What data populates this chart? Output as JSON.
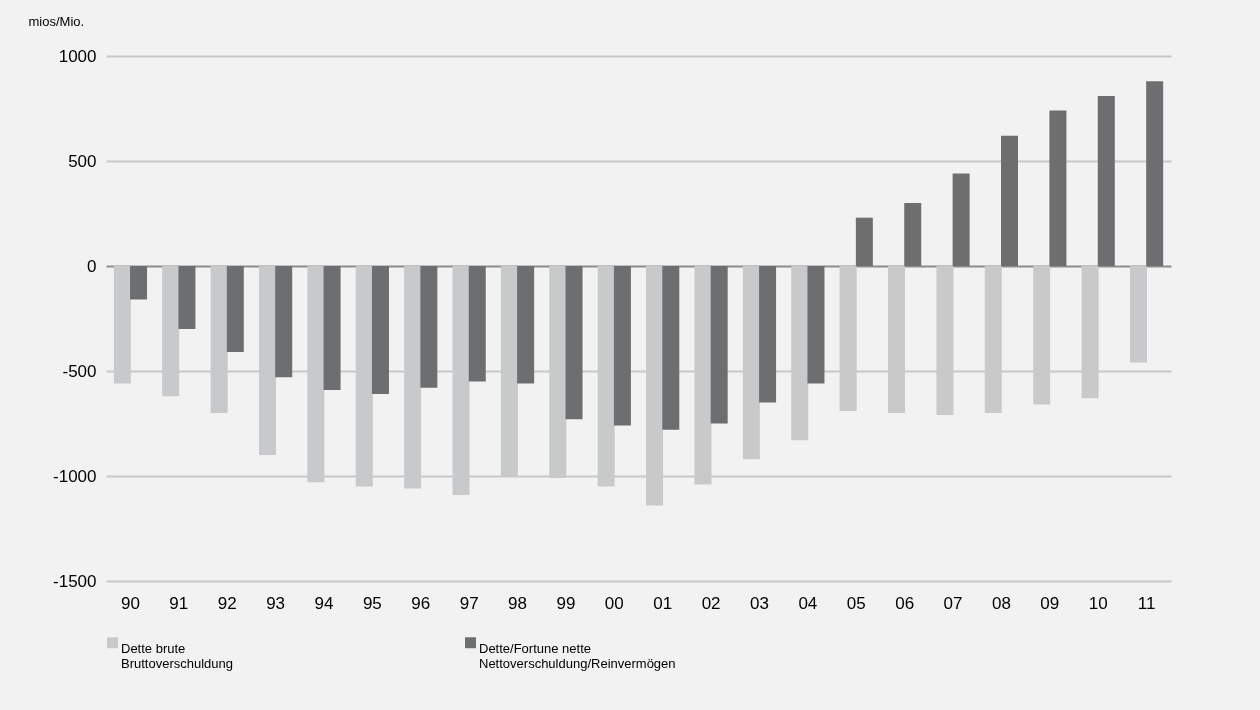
{
  "chart_data": {
    "type": "bar",
    "ylabel": "mios/Mio.",
    "categories": [
      "90",
      "91",
      "92",
      "93",
      "94",
      "95",
      "96",
      "97",
      "98",
      "99",
      "00",
      "01",
      "02",
      "03",
      "04",
      "05",
      "06",
      "07",
      "08",
      "09",
      "10",
      "11"
    ],
    "series": [
      {
        "name": "Dette brute\nBruttoverschuldung",
        "color": "#c8c9cb",
        "values": [
          -560,
          -620,
          -700,
          -900,
          -1030,
          -1050,
          -1060,
          -1090,
          -1000,
          -1010,
          -1050,
          -1140,
          -1040,
          -920,
          -830,
          -690,
          -700,
          -710,
          -700,
          -660,
          -630,
          -460
        ]
      },
      {
        "name": "Dette/Fortune nette\nNettoverschuldung/Reinvermögen",
        "color": "#6d6e70",
        "values": [
          -160,
          -300,
          -410,
          -530,
          -590,
          -610,
          -580,
          -550,
          -560,
          -730,
          -760,
          -780,
          -750,
          -650,
          -560,
          230,
          300,
          440,
          620,
          740,
          810,
          880
        ]
      }
    ],
    "ylim": [
      -1500,
      1000
    ],
    "yticks": [
      -1500,
      -1000,
      -500,
      0,
      500,
      1000
    ],
    "grid": "y",
    "legend": "bottom"
  }
}
